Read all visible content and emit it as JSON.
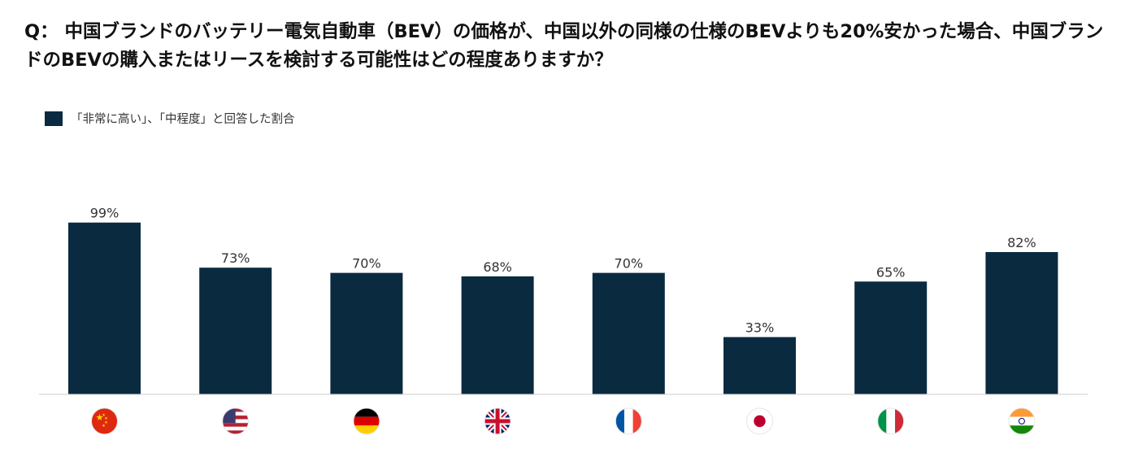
{
  "title": "Q： 中国ブランドのバッテリー電気自動車（BEV）の価格が、中国以外の同様の仕様のBEVよりも20%安かった場合、中国ブランドのBEVの購入またはリースを検討する可能性はどの程度ありますか？",
  "legend": {
    "label": "「非常に高い」、「中程度」と回答した割合",
    "color": "#0a2a40"
  },
  "chart_data": {
    "type": "bar",
    "title": "Q： 中国ブランドのバッテリー電気自動車（BEV）の価格が、中国以外の同様の仕様のBEVよりも20%安かった場合、中国ブランドのBEVの購入またはリースを検討する可能性はどの程度ありますか？",
    "categories": [
      "china-flag",
      "usa-flag",
      "germany-flag",
      "uk-flag",
      "france-flag",
      "japan-flag",
      "italy-flag",
      "india-flag"
    ],
    "series": [
      {
        "name": "「非常に高い」、「中程度」と回答した割合",
        "values": [
          99,
          73,
          70,
          68,
          70,
          33,
          65,
          82
        ]
      }
    ],
    "labels": [
      "99%",
      "73%",
      "70%",
      "68%",
      "70%",
      "33%",
      "65%",
      "82%"
    ],
    "ylim": [
      0,
      100
    ],
    "bar_color": "#0a2a40",
    "grid": false,
    "legend_position": "top-left"
  }
}
